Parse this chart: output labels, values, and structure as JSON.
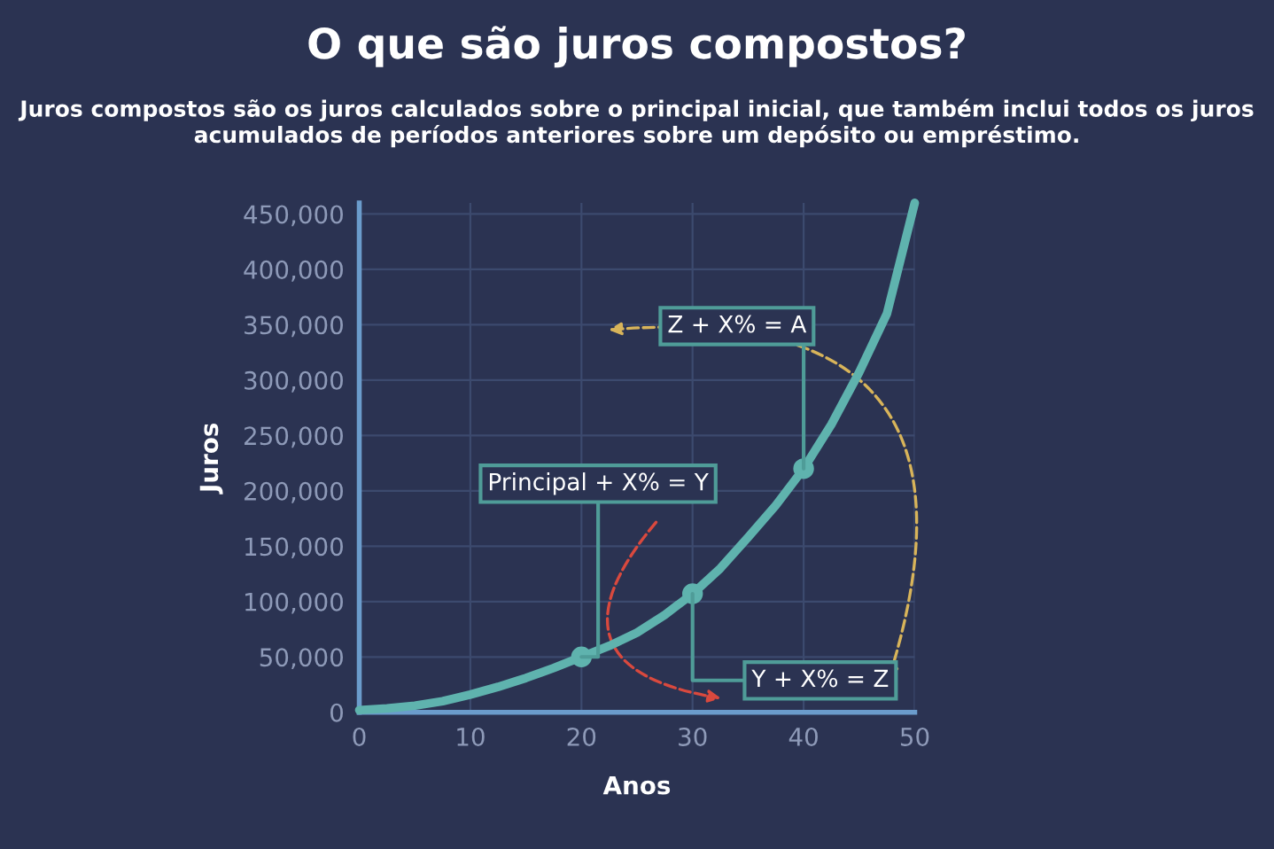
{
  "chart_data": {
    "type": "line",
    "title": "O que são juros compostos?",
    "subtitle": "Juros compostos são os juros calculados sobre o principal inicial, que também inclui todos os juros acumulados de períodos anteriores sobre um depósito ou empréstimo.",
    "xlabel": "Anos",
    "ylabel": "Juros",
    "series": [
      {
        "color": "#5fb3ae",
        "x": [
          0,
          2.5,
          5,
          7.5,
          10,
          12.5,
          15,
          17.5,
          20,
          22.5,
          25,
          27.5,
          30,
          32.5,
          35,
          37.5,
          40,
          42.5,
          45,
          47.5,
          50
        ],
        "values": [
          2000,
          3500,
          6000,
          10000,
          16000,
          23000,
          31000,
          40000,
          50000,
          60000,
          72000,
          88000,
          107000,
          130000,
          158000,
          187000,
          220000,
          260000,
          307000,
          360000,
          460000
        ]
      },
      {
        "type": "scatter",
        "marker": "circle",
        "color": "#5fb3ae",
        "x": [
          20,
          30,
          40
        ],
        "values": [
          50000,
          107000,
          220000
        ]
      }
    ],
    "annotations": [
      {
        "text": "Principal + X% = Y",
        "x": 20,
        "y": 50000
      },
      {
        "text": "Y + X% = Z",
        "x": 30,
        "y": 107000
      },
      {
        "text": "Z + X% = A",
        "x": 40,
        "y": 220000
      }
    ],
    "xlim": [
      0,
      50
    ],
    "ylim": [
      0,
      460000
    ],
    "xticks": [
      0,
      10,
      20,
      30,
      40,
      50
    ],
    "yticks": [
      {
        "value": 0,
        "label": "0"
      },
      {
        "value": 50000,
        "label": "50,000"
      },
      {
        "value": 100000,
        "label": "100,000"
      },
      {
        "value": 150000,
        "label": "150,000"
      },
      {
        "value": 200000,
        "label": "200,000"
      },
      {
        "value": 250000,
        "label": "250,000"
      },
      {
        "value": 300000,
        "label": "300,000"
      },
      {
        "value": 350000,
        "label": "350,000"
      },
      {
        "value": 400000,
        "label": "400,000"
      },
      {
        "value": 450000,
        "label": "450,000"
      }
    ],
    "grid": true,
    "line_style": "solid"
  }
}
